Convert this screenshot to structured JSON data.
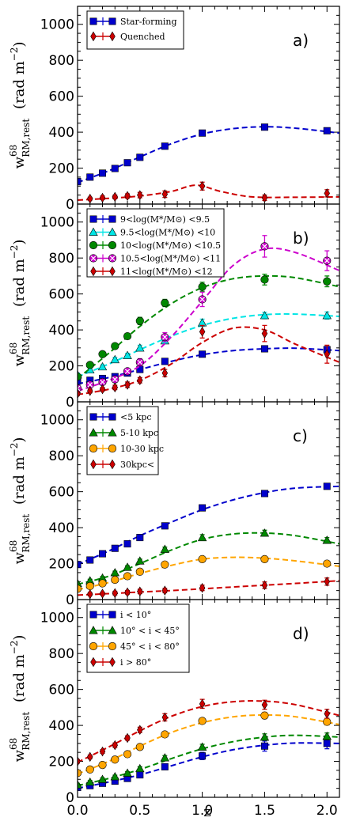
{
  "xlabel": "z",
  "ylabel_main": "w",
  "ylabel_sup": "68",
  "ylabel_sub": "RM,rest",
  "ylabel_units": "(rad m",
  "ylabel_units_exp": "−2",
  "ylabel_units_close": ")",
  "x_ticks": [
    "0.0",
    "0.5",
    "1.0",
    "1.5",
    "2.0"
  ],
  "y_ticks": [
    "0",
    "200",
    "400",
    "600",
    "800",
    "1000"
  ],
  "chart_data": [
    {
      "type": "scatter",
      "panel_label": "a)",
      "xlim": [
        0,
        2.1
      ],
      "ylim": [
        0,
        1100
      ],
      "xlabel": "",
      "ylabel": "w68 RM,rest (rad m−2)",
      "legend_position": "top-left",
      "series": [
        {
          "name": "Star-forming",
          "color": "#0000cc",
          "marker": "s",
          "x": [
            0.0,
            0.1,
            0.2,
            0.3,
            0.4,
            0.5,
            0.7,
            1.0,
            1.5,
            2.0
          ],
          "y": [
            125,
            150,
            172,
            198,
            230,
            260,
            322,
            395,
            428,
            408
          ],
          "err": [
            8,
            8,
            8,
            8,
            8,
            10,
            10,
            14,
            14,
            14
          ],
          "fit_x": [
            0.0,
            0.25,
            0.5,
            0.75,
            1.0,
            1.25,
            1.5,
            1.75,
            2.1
          ],
          "fit_y": [
            120,
            185,
            262,
            335,
            390,
            420,
            430,
            422,
            395
          ]
        },
        {
          "name": "Quenched",
          "color": "#cc0000",
          "marker": "d",
          "x": [
            0.1,
            0.2,
            0.3,
            0.4,
            0.5,
            0.7,
            1.0,
            1.5,
            2.0
          ],
          "y": [
            30,
            35,
            40,
            45,
            50,
            55,
            100,
            35,
            60
          ],
          "err": [
            8,
            10,
            10,
            12,
            15,
            18,
            22,
            15,
            20
          ],
          "fit_x": [
            0.0,
            0.25,
            0.5,
            0.75,
            0.95,
            1.15,
            1.4,
            1.75,
            2.1
          ],
          "fit_y": [
            22,
            32,
            45,
            70,
            105,
            70,
            40,
            38,
            40
          ]
        }
      ]
    },
    {
      "type": "scatter",
      "panel_label": "b)",
      "xlim": [
        0,
        2.1
      ],
      "ylim": [
        0,
        1100
      ],
      "legend_position": "top-left",
      "series": [
        {
          "name": "9<log(M*/M⊙) <9.5",
          "color": "#0000cc",
          "marker": "s",
          "x": [
            0.0,
            0.1,
            0.2,
            0.3,
            0.4,
            0.5,
            0.7,
            1.0,
            1.5,
            2.0
          ],
          "y": [
            115,
            120,
            130,
            140,
            160,
            180,
            225,
            265,
            295,
            290
          ],
          "err": [
            8,
            8,
            8,
            8,
            8,
            10,
            12,
            12,
            15,
            18
          ],
          "fit_x": [
            0.0,
            0.25,
            0.5,
            0.75,
            1.0,
            1.25,
            1.5,
            1.75,
            2.1
          ],
          "fit_y": [
            100,
            135,
            180,
            225,
            262,
            285,
            295,
            298,
            285
          ]
        },
        {
          "name": "9.5<log(M*/M⊙) <10",
          "color": "#00e5e5",
          "marker": "^",
          "x": [
            0.0,
            0.1,
            0.2,
            0.3,
            0.4,
            0.5,
            0.7,
            1.0,
            1.5,
            2.0
          ],
          "y": [
            150,
            178,
            195,
            235,
            258,
            300,
            340,
            440,
            480,
            480
          ],
          "err": [
            10,
            10,
            10,
            12,
            12,
            15,
            15,
            20,
            18,
            20
          ],
          "fit_x": [
            0.0,
            0.25,
            0.5,
            0.75,
            1.0,
            1.25,
            1.5,
            1.75,
            2.1
          ],
          "fit_y": [
            140,
            210,
            290,
            365,
            425,
            465,
            485,
            488,
            475
          ]
        },
        {
          "name": "10<log(M*/M⊙) <10.5",
          "color": "#008800",
          "marker": "o",
          "x": [
            0.0,
            0.1,
            0.2,
            0.3,
            0.4,
            0.5,
            0.7,
            1.0,
            1.5,
            2.0
          ],
          "y": [
            140,
            205,
            265,
            310,
            365,
            450,
            550,
            640,
            680,
            670
          ],
          "err": [
            12,
            12,
            15,
            15,
            15,
            20,
            20,
            25,
            30,
            30
          ],
          "fit_x": [
            0.0,
            0.25,
            0.5,
            0.75,
            1.0,
            1.25,
            1.5,
            1.75,
            2.1
          ],
          "fit_y": [
            130,
            270,
            420,
            545,
            635,
            685,
            700,
            690,
            640
          ]
        },
        {
          "name": "10.5<log(M*/M⊙) <11",
          "color": "#cc00cc",
          "marker": "X",
          "x": [
            0.0,
            0.1,
            0.2,
            0.3,
            0.4,
            0.5,
            0.7,
            1.0,
            1.5,
            2.0
          ],
          "y": [
            75,
            95,
            110,
            125,
            170,
            220,
            360,
            570,
            865,
            785
          ],
          "err": [
            10,
            10,
            10,
            10,
            15,
            20,
            25,
            40,
            60,
            55
          ],
          "fit_x": [
            0.0,
            0.25,
            0.5,
            0.75,
            1.0,
            1.25,
            1.5,
            1.75,
            2.1
          ],
          "fit_y": [
            60,
            120,
            200,
            360,
            560,
            760,
            850,
            830,
            730
          ]
        },
        {
          "name": "11<log(M*/M⊙) <12",
          "color": "#cc0000",
          "marker": "d",
          "x": [
            0.0,
            0.1,
            0.2,
            0.3,
            0.4,
            0.5,
            0.7,
            1.0,
            1.5,
            2.0
          ],
          "y": [
            45,
            60,
            70,
            80,
            95,
            120,
            160,
            390,
            380,
            265
          ],
          "err": [
            10,
            10,
            10,
            12,
            15,
            15,
            20,
            35,
            45,
            50
          ],
          "fit_x": [
            0.0,
            0.25,
            0.5,
            0.75,
            1.0,
            1.25,
            1.5,
            1.75,
            2.1
          ],
          "fit_y": [
            40,
            70,
            120,
            210,
            330,
            410,
            400,
            320,
            220
          ]
        }
      ]
    },
    {
      "type": "scatter",
      "panel_label": "c)",
      "xlim": [
        0,
        2.1
      ],
      "ylim": [
        0,
        1100
      ],
      "legend_position": "top-left",
      "series": [
        {
          "name": "<5 kpc",
          "color": "#0000cc",
          "marker": "s",
          "x": [
            0.0,
            0.1,
            0.2,
            0.3,
            0.4,
            0.5,
            0.7,
            1.0,
            1.5,
            2.0
          ],
          "y": [
            195,
            220,
            255,
            285,
            310,
            345,
            410,
            510,
            590,
            630
          ],
          "err": [
            8,
            8,
            8,
            8,
            8,
            10,
            10,
            14,
            14,
            14
          ],
          "fit_x": [
            0.0,
            0.25,
            0.5,
            0.75,
            1.0,
            1.25,
            1.5,
            1.75,
            2.1
          ],
          "fit_y": [
            195,
            270,
            355,
            430,
            500,
            555,
            595,
            620,
            630
          ]
        },
        {
          "name": "5-10 kpc",
          "color": "#008800",
          "marker": "^",
          "x": [
            0.0,
            0.1,
            0.2,
            0.3,
            0.4,
            0.5,
            0.7,
            1.0,
            1.5,
            2.0
          ],
          "y": [
            90,
            105,
            120,
            150,
            180,
            215,
            280,
            345,
            370,
            330
          ],
          "err": [
            8,
            8,
            8,
            8,
            8,
            10,
            12,
            16,
            16,
            15
          ],
          "fit_x": [
            0.0,
            0.25,
            0.5,
            0.75,
            1.0,
            1.25,
            1.5,
            1.75,
            2.1
          ],
          "fit_y": [
            85,
            130,
            200,
            275,
            335,
            365,
            370,
            355,
            310
          ]
        },
        {
          "name": "10-30 kpc",
          "color": "#ffa500",
          "marker": "o",
          "x": [
            0.0,
            0.1,
            0.2,
            0.3,
            0.4,
            0.5,
            0.7,
            1.0,
            1.5,
            2.0
          ],
          "y": [
            60,
            75,
            90,
            110,
            130,
            155,
            195,
            225,
            225,
            200
          ],
          "err": [
            8,
            8,
            8,
            8,
            8,
            10,
            10,
            12,
            12,
            12
          ],
          "fit_x": [
            0.0,
            0.25,
            0.5,
            0.75,
            1.0,
            1.25,
            1.5,
            1.75,
            2.1
          ],
          "fit_y": [
            55,
            95,
            145,
            190,
            225,
            235,
            230,
            215,
            185
          ]
        },
        {
          "name": "30kpc<",
          "color": "#cc0000",
          "marker": "d",
          "x": [
            0.1,
            0.2,
            0.3,
            0.4,
            0.5,
            0.7,
            1.0,
            1.5,
            2.0
          ],
          "y": [
            30,
            33,
            36,
            40,
            45,
            50,
            65,
            80,
            100
          ],
          "err": [
            8,
            8,
            10,
            10,
            12,
            12,
            15,
            18,
            20
          ],
          "fit_x": [
            0.0,
            0.25,
            0.5,
            0.75,
            1.0,
            1.25,
            1.5,
            1.75,
            2.1
          ],
          "fit_y": [
            25,
            33,
            42,
            50,
            60,
            70,
            80,
            90,
            105
          ]
        }
      ]
    },
    {
      "type": "scatter",
      "panel_label": "d)",
      "xlim": [
        0,
        2.1
      ],
      "ylim": [
        0,
        1100
      ],
      "legend_position": "top-left",
      "series": [
        {
          "name": "i < 10°",
          "color": "#0000cc",
          "marker": "s",
          "x": [
            0.0,
            0.1,
            0.2,
            0.3,
            0.4,
            0.5,
            0.7,
            1.0,
            1.5,
            2.0
          ],
          "y": [
            55,
            65,
            78,
            90,
            105,
            125,
            170,
            230,
            285,
            300
          ],
          "err": [
            8,
            8,
            8,
            8,
            8,
            10,
            12,
            20,
            28,
            30
          ],
          "fit_x": [
            0.0,
            0.25,
            0.5,
            0.75,
            1.0,
            1.25,
            1.5,
            1.75,
            2.1
          ],
          "fit_y": [
            50,
            85,
            125,
            175,
            225,
            265,
            290,
            302,
            300
          ]
        },
        {
          "name": "10° < i < 45°",
          "color": "#008800",
          "marker": "^",
          "x": [
            0.0,
            0.1,
            0.2,
            0.3,
            0.4,
            0.5,
            0.7,
            1.0,
            1.5,
            2.0
          ],
          "y": [
            70,
            85,
            100,
            115,
            135,
            160,
            220,
            280,
            335,
            340
          ],
          "err": [
            8,
            8,
            8,
            8,
            8,
            10,
            12,
            15,
            18,
            18
          ],
          "fit_x": [
            0.0,
            0.25,
            0.5,
            0.75,
            1.0,
            1.25,
            1.5,
            1.75,
            2.1
          ],
          "fit_y": [
            65,
            105,
            155,
            215,
            270,
            310,
            335,
            345,
            335
          ]
        },
        {
          "name": "45° < i < 80°",
          "color": "#ffa500",
          "marker": "o",
          "x": [
            0.0,
            0.1,
            0.2,
            0.3,
            0.4,
            0.5,
            0.7,
            1.0,
            1.5,
            2.0
          ],
          "y": [
            135,
            155,
            180,
            210,
            240,
            280,
            350,
            425,
            455,
            420
          ],
          "err": [
            8,
            8,
            8,
            8,
            10,
            10,
            12,
            15,
            18,
            18
          ],
          "fit_x": [
            0.0,
            0.25,
            0.5,
            0.75,
            1.0,
            1.25,
            1.5,
            1.75,
            2.1
          ],
          "fit_y": [
            130,
            200,
            285,
            360,
            415,
            448,
            458,
            448,
            405
          ]
        },
        {
          "name": "i > 80°",
          "color": "#cc0000",
          "marker": "d",
          "x": [
            0.0,
            0.1,
            0.2,
            0.3,
            0.4,
            0.5,
            0.7,
            1.0,
            1.5,
            2.0
          ],
          "y": [
            200,
            225,
            255,
            290,
            330,
            375,
            445,
            520,
            515,
            465
          ],
          "err": [
            10,
            10,
            10,
            12,
            12,
            15,
            20,
            25,
            25,
            25
          ],
          "fit_x": [
            0.0,
            0.25,
            0.5,
            0.75,
            1.0,
            1.25,
            1.5,
            1.75,
            2.1
          ],
          "fit_y": [
            195,
            280,
            370,
            450,
            505,
            532,
            535,
            515,
            455
          ]
        }
      ]
    }
  ]
}
